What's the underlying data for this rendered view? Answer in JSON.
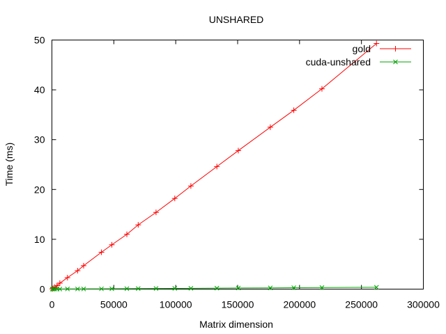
{
  "chart_data": {
    "type": "line",
    "title": "UNSHARED",
    "xlabel": "Matrix dimension",
    "ylabel": "Time (ms)",
    "xlim": [
      0,
      300000
    ],
    "ylim": [
      0,
      50
    ],
    "xticks": [
      0,
      50000,
      100000,
      150000,
      200000,
      250000,
      300000
    ],
    "yticks": [
      0,
      10,
      20,
      30,
      40,
      50
    ],
    "xtick_labels": [
      "0",
      "50000",
      "100000",
      "150000",
      "200000",
      "250000",
      "300000"
    ],
    "ytick_labels": [
      "0",
      "10",
      "20",
      "30",
      "40",
      "50"
    ],
    "grid": false,
    "legend_position": "top-right",
    "series": [
      {
        "name": "gold",
        "color": "#ff0000",
        "marker": "plus",
        "x": [
          256,
          1024,
          2304,
          4096,
          6400,
          12544,
          20736,
          25600,
          40000,
          48400,
          60516,
          69696,
          84100,
          99225,
          112225,
          133225,
          150544,
          176400,
          195364,
          218089,
          262144
        ],
        "y": [
          0.05,
          0.2,
          0.4,
          0.7,
          1.2,
          2.3,
          3.7,
          4.7,
          7.4,
          8.9,
          11.0,
          12.9,
          15.4,
          18.2,
          20.7,
          24.6,
          27.8,
          32.5,
          35.9,
          40.2,
          49.3
        ]
      },
      {
        "name": "cuda-unshared",
        "color": "#00a000",
        "marker": "cross",
        "x": [
          256,
          1024,
          2304,
          4096,
          6400,
          12544,
          20736,
          25600,
          40000,
          48400,
          60516,
          69696,
          84100,
          99225,
          112225,
          133225,
          150544,
          176400,
          195364,
          218089,
          262144
        ],
        "y": [
          0.01,
          0.01,
          0.01,
          0.02,
          0.02,
          0.03,
          0.04,
          0.04,
          0.06,
          0.07,
          0.09,
          0.1,
          0.12,
          0.14,
          0.16,
          0.19,
          0.22,
          0.25,
          0.28,
          0.31,
          0.37
        ]
      }
    ]
  }
}
